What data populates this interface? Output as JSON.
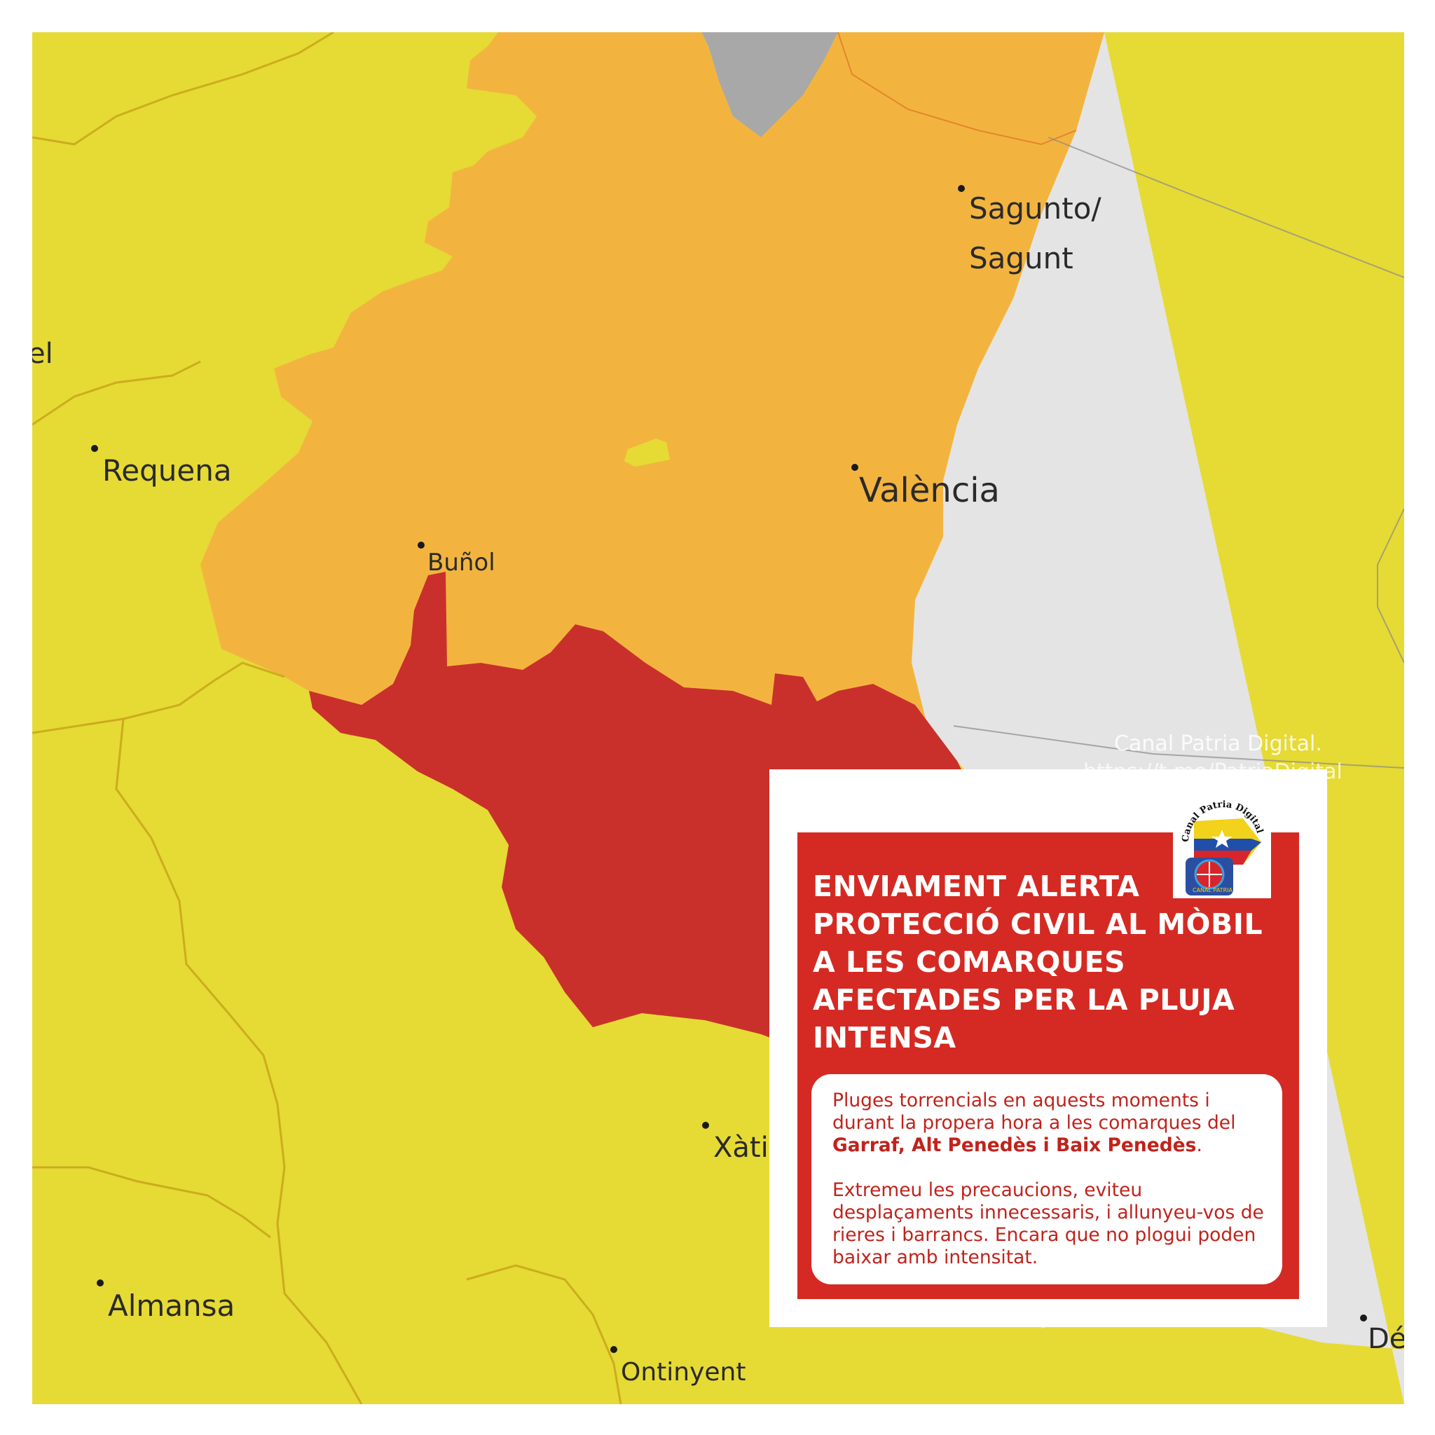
{
  "map": {
    "colors": {
      "yellow": "#e6da35",
      "orange": "#f3b43f",
      "red": "#c9302c",
      "sea": "#e4e4e4",
      "grey_land": "#a8a8a8",
      "border": "#b8860b"
    },
    "cities": [
      {
        "name": "Sagunto/",
        "dot": true
      },
      {
        "name": "Sagunt",
        "dot": false
      },
      {
        "name": "el",
        "dot": false
      },
      {
        "name": "Requena",
        "dot": true
      },
      {
        "name": "València",
        "dot": true
      },
      {
        "name": "Buñol",
        "dot": true
      },
      {
        "name": "Xàti",
        "dot": true
      },
      {
        "name": "Almansa",
        "dot": true
      },
      {
        "name": "Ontinyent",
        "dot": true
      },
      {
        "name": "Dé",
        "dot": true
      }
    ]
  },
  "watermark": {
    "name": "Canal Patria Digital.",
    "url": "https://t.me/PatriaDigital"
  },
  "alert": {
    "title": "ENVIAMENT ALERTA PROTECCIÓ CIVIL AL MÒBIL A LES COMARQUES AFECTADES PER LA PLUJA INTENSA",
    "para1_text": "Pluges torrencials en aquests moments i durant la propera hora a les comarques del",
    "para1_bold": "Garraf, Alt Penedès i Baix Penedès",
    "para1_end": ".",
    "para2": "Extremeu les precaucions, eviteu desplaçaments innecessaris, i allunyeu-vos de rieres i barrancs. Encara que no plogui poden baixar amb intensitat.",
    "logo_text_top": "Canal Patria Digital",
    "logo_text_bottom": "CANAL PATRIA"
  }
}
